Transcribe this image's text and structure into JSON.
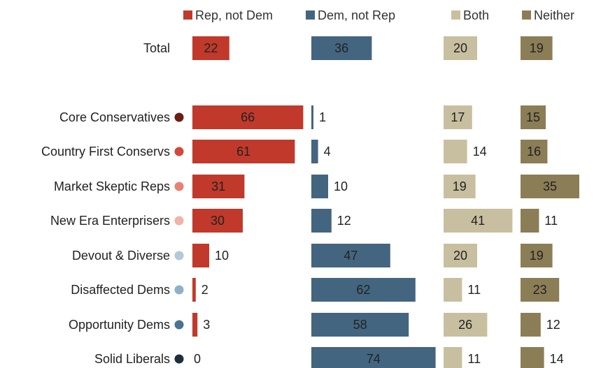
{
  "chart_data": {
    "type": "bar",
    "layout": "small-multiples-horizontal",
    "legend_position": "top",
    "grid": false,
    "series": [
      {
        "name": "Rep, not Dem",
        "color": "#c0392b",
        "values": [
          22,
          66,
          61,
          31,
          30,
          10,
          2,
          3,
          0
        ]
      },
      {
        "name": "Dem, not Rep",
        "color": "#44657f",
        "values": [
          36,
          1,
          4,
          10,
          12,
          47,
          62,
          58,
          74
        ]
      },
      {
        "name": "Both",
        "color": "#c8bfa0",
        "values": [
          20,
          17,
          14,
          19,
          41,
          20,
          11,
          26,
          11
        ]
      },
      {
        "name": "Neither",
        "color": "#8b7d56",
        "values": [
          19,
          15,
          16,
          35,
          11,
          19,
          23,
          12,
          14
        ]
      }
    ],
    "categories": [
      {
        "label": "Total",
        "dot_color": null
      },
      {
        "label": "Core Conservatives",
        "dot_color": "#6b1e13"
      },
      {
        "label": "Country First Conservs",
        "dot_color": "#d0493a"
      },
      {
        "label": "Market Skeptic Reps",
        "dot_color": "#e88274"
      },
      {
        "label": "New Era Enterprisers",
        "dot_color": "#f0b3a8"
      },
      {
        "label": "Devout & Diverse",
        "dot_color": "#b4c8da"
      },
      {
        "label": "Disaffected Dems",
        "dot_color": "#8fb0c9"
      },
      {
        "label": "Opportunity Dems",
        "dot_color": "#4b7391"
      },
      {
        "label": "Solid Liberals",
        "dot_color": "#1d2f3d"
      }
    ]
  }
}
